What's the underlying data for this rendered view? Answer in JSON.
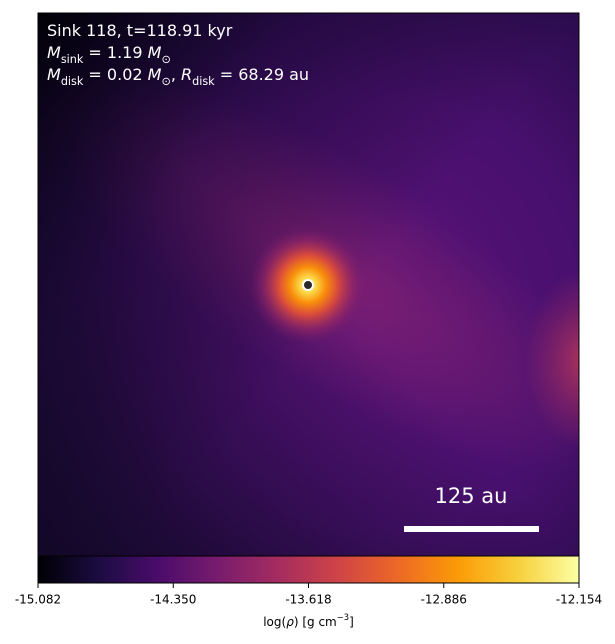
{
  "chart_data": {
    "type": "density-map",
    "annotations": [
      [
        {
          "text": "Sink 118, t=118.91 kyr",
          "style": "normal"
        }
      ],
      [
        {
          "text": "M",
          "style": "italic"
        },
        {
          "text": "sink",
          "style": "sub"
        },
        {
          "text": " = 1.19 ",
          "style": "normal"
        },
        {
          "text": "M",
          "style": "italic"
        },
        {
          "text": "⊙",
          "style": "sub"
        }
      ],
      [
        {
          "text": "M",
          "style": "italic"
        },
        {
          "text": "disk",
          "style": "sub"
        },
        {
          "text": " = 0.02 ",
          "style": "normal"
        },
        {
          "text": "M",
          "style": "italic"
        },
        {
          "text": "⊙",
          "style": "sub"
        },
        {
          "text": ", ",
          "style": "normal"
        },
        {
          "text": "R",
          "style": "italic"
        },
        {
          "text": "disk",
          "style": "sub"
        },
        {
          "text": " = 68.29 au",
          "style": "normal"
        }
      ]
    ],
    "scale_bar_label": "125 au",
    "colorbar": {
      "label": [
        {
          "text": "log(",
          "style": "normal"
        },
        {
          "text": "ρ",
          "style": "italic"
        },
        {
          "text": ") [g cm",
          "style": "normal"
        },
        {
          "text": "−3",
          "style": "sup"
        },
        {
          "text": "]",
          "style": "normal"
        }
      ],
      "xlim": [
        -15.082,
        -12.154
      ],
      "xticks": [
        -15.082,
        {
          "value": -14.35,
          "label": "-14.350"
        },
        -13.618,
        -12.886,
        -12.154
      ],
      "colormap": [
        "#000004",
        "#1b0c41",
        "#4a0c6b",
        "#781c6d",
        "#a52c60",
        "#cf4446",
        "#ed6925",
        "#fb9b06",
        "#f7d13d",
        "#fcffa4"
      ]
    }
  }
}
